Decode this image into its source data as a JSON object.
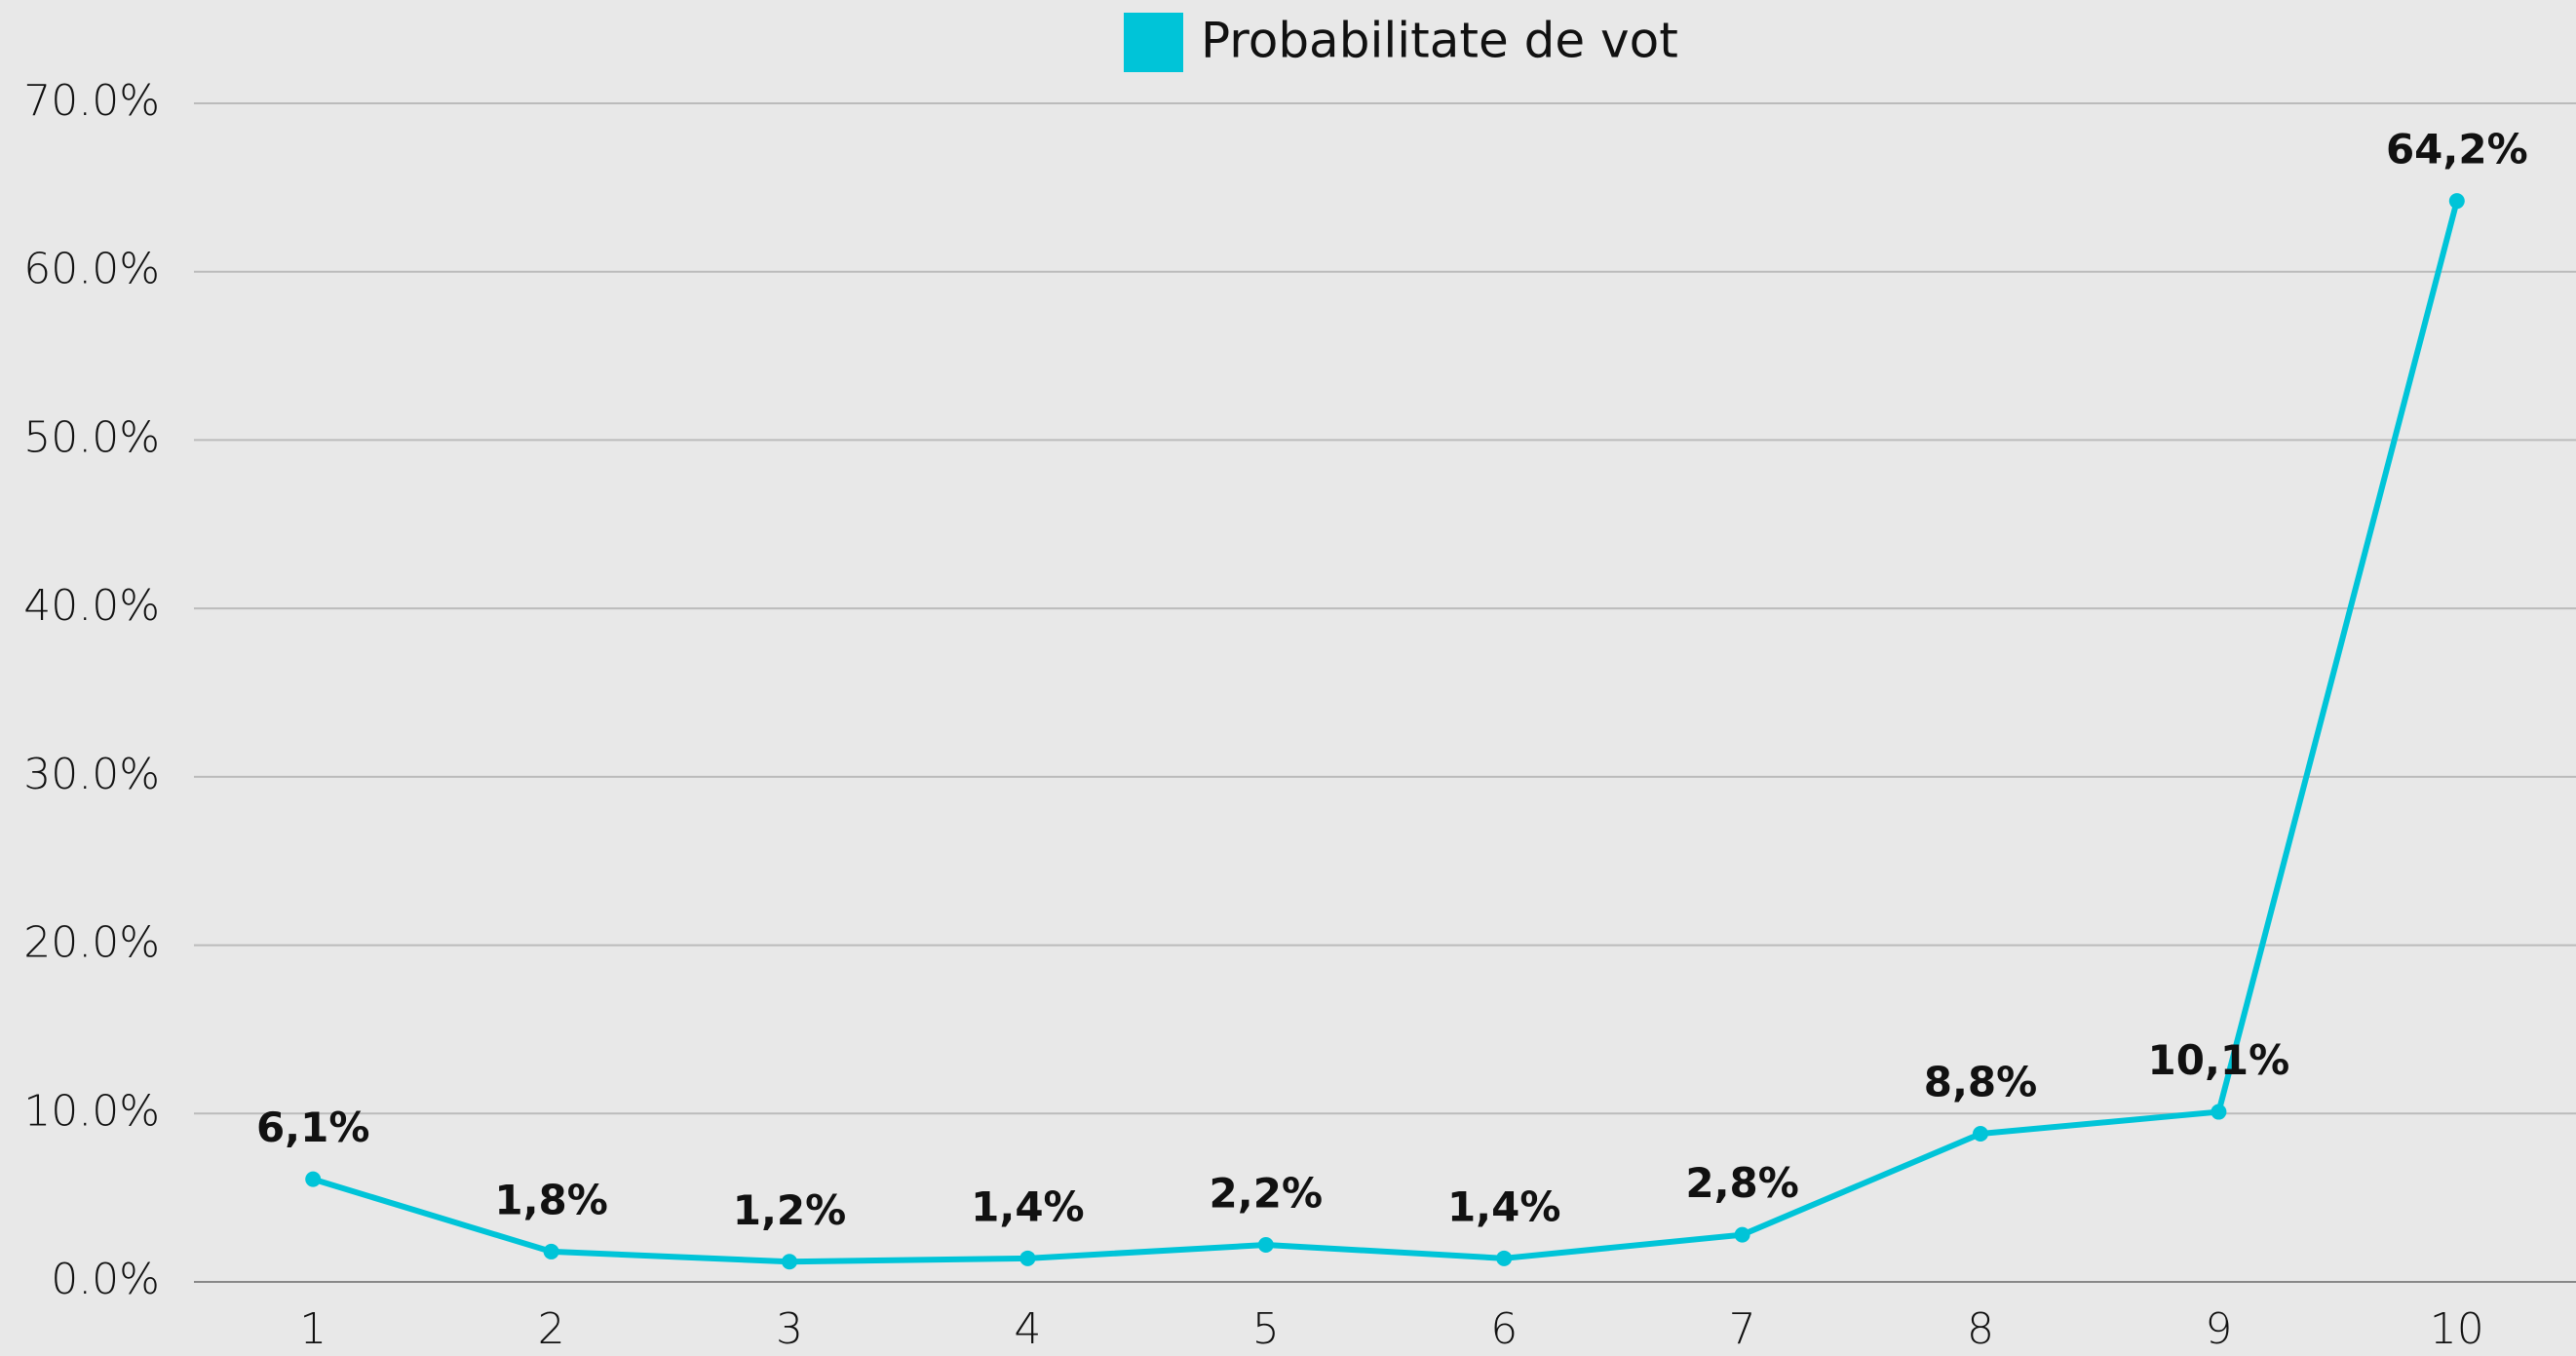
{
  "chart_data": {
    "type": "line",
    "categories": [
      "1",
      "2",
      "3",
      "4",
      "5",
      "6",
      "7",
      "8",
      "9",
      "10"
    ],
    "series": [
      {
        "name": "Probabilitate de vot",
        "color": "#00c4d8",
        "values": [
          6.1,
          1.8,
          1.2,
          1.4,
          2.2,
          1.4,
          2.8,
          8.8,
          10.1,
          64.2
        ],
        "value_labels": [
          "6,1%",
          "1,8%",
          "1,2%",
          "1,4%",
          "2,2%",
          "1,4%",
          "2,8%",
          "8,8%",
          "10,1%",
          "64,2%"
        ]
      }
    ],
    "ylim": [
      0,
      70
    ],
    "yticks": [
      {
        "value": 0,
        "label": "0.0%"
      },
      {
        "value": 10,
        "label": "10.0%"
      },
      {
        "value": 20,
        "label": "20.0%"
      },
      {
        "value": 30,
        "label": "30.0%"
      },
      {
        "value": 40,
        "label": "40.0%"
      },
      {
        "value": 50,
        "label": "50.0%"
      },
      {
        "value": 60,
        "label": "60.0%"
      },
      {
        "value": 70,
        "label": "70.0%"
      }
    ],
    "grid": true,
    "legend": "top"
  }
}
